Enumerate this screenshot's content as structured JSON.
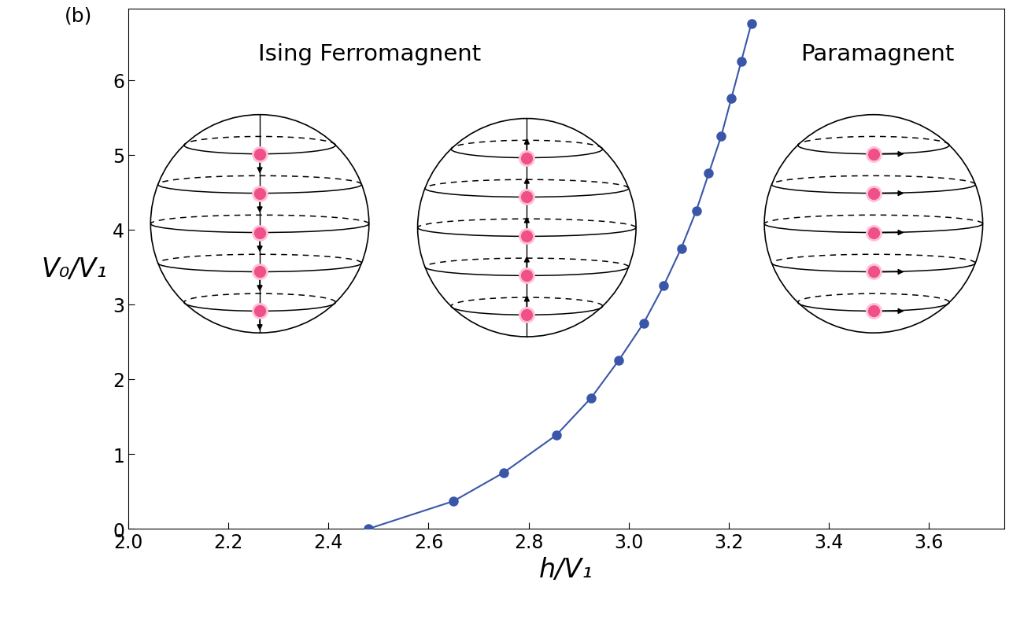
{
  "chart_data": {
    "type": "line",
    "panel_label": "(b)",
    "annotations": [
      "Ising Ferromagnent",
      "Paramagnent"
    ],
    "x_label": "h/V₁",
    "y_label": "V₀/V₁",
    "x": [
      2.48,
      2.65,
      2.75,
      2.855,
      2.925,
      2.98,
      3.03,
      3.07,
      3.105,
      3.135,
      3.16,
      3.185,
      3.205,
      3.225,
      3.245
    ],
    "values": [
      0.0,
      0.37,
      0.75,
      1.25,
      1.75,
      2.25,
      2.75,
      3.25,
      3.75,
      4.25,
      4.75,
      5.25,
      5.75,
      6.25,
      6.75
    ],
    "color": "#3a56a8",
    "marker": "o",
    "line_style": "solid",
    "xlim": [
      2.0,
      3.75
    ],
    "ylim": [
      0,
      6.95
    ],
    "xticks": [
      2.0,
      2.2,
      2.4,
      2.6,
      2.8,
      3.0,
      3.2,
      3.4,
      3.6
    ],
    "yticks": [
      0,
      1,
      2,
      3,
      4,
      5,
      6
    ],
    "grid": false
  }
}
